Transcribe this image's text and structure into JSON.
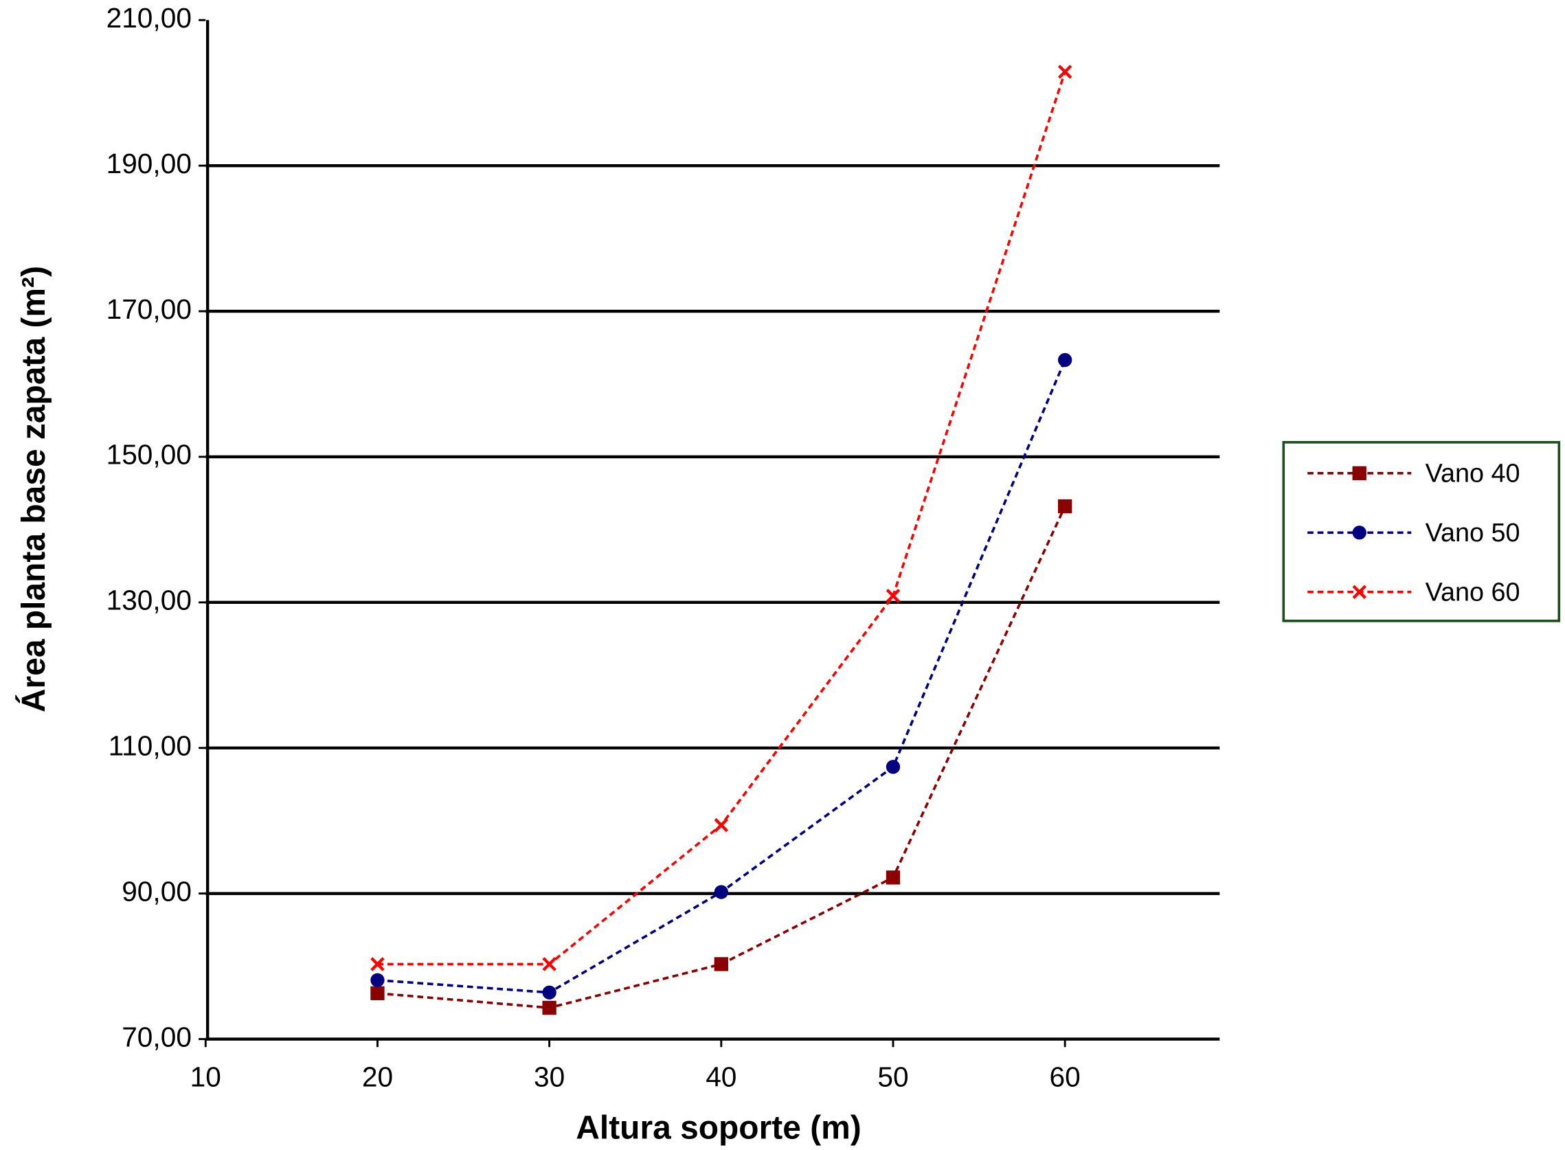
{
  "chart_data": {
    "type": "line",
    "x_label": "Altura soporte (m)",
    "y_label": "Área planta base zapata (m²)",
    "x": [
      20,
      30,
      40,
      50,
      60
    ],
    "series": [
      {
        "name": "Vano 40",
        "color": "#8b0000",
        "marker": "square",
        "values": [
          76.3,
          74.3,
          80.3,
          92.2,
          143.2
        ]
      },
      {
        "name": "Vano 50",
        "color": "#000080",
        "marker": "circle",
        "values": [
          78.1,
          76.4,
          90.2,
          107.4,
          163.3
        ]
      },
      {
        "name": "Vano 60",
        "color": "#ff0000",
        "marker": "x",
        "values": [
          80.3,
          80.3,
          99.4,
          130.9,
          202.9
        ]
      }
    ],
    "xlim": [
      10,
      69
    ],
    "xticks": [
      10,
      20,
      30,
      40,
      50,
      60
    ],
    "ylim": [
      70,
      210
    ],
    "yticks": [
      {
        "value": 70,
        "label": "70,00"
      },
      {
        "value": 90,
        "label": "90,00"
      },
      {
        "value": 110,
        "label": "110,00"
      },
      {
        "value": 130,
        "label": "130,00"
      },
      {
        "value": 150,
        "label": "150,00"
      },
      {
        "value": 170,
        "label": "170,00"
      },
      {
        "value": 190,
        "label": "190,00"
      },
      {
        "value": 210,
        "label": "210,00"
      }
    ],
    "grid": true,
    "legend": "right",
    "line_style": "dashed"
  }
}
